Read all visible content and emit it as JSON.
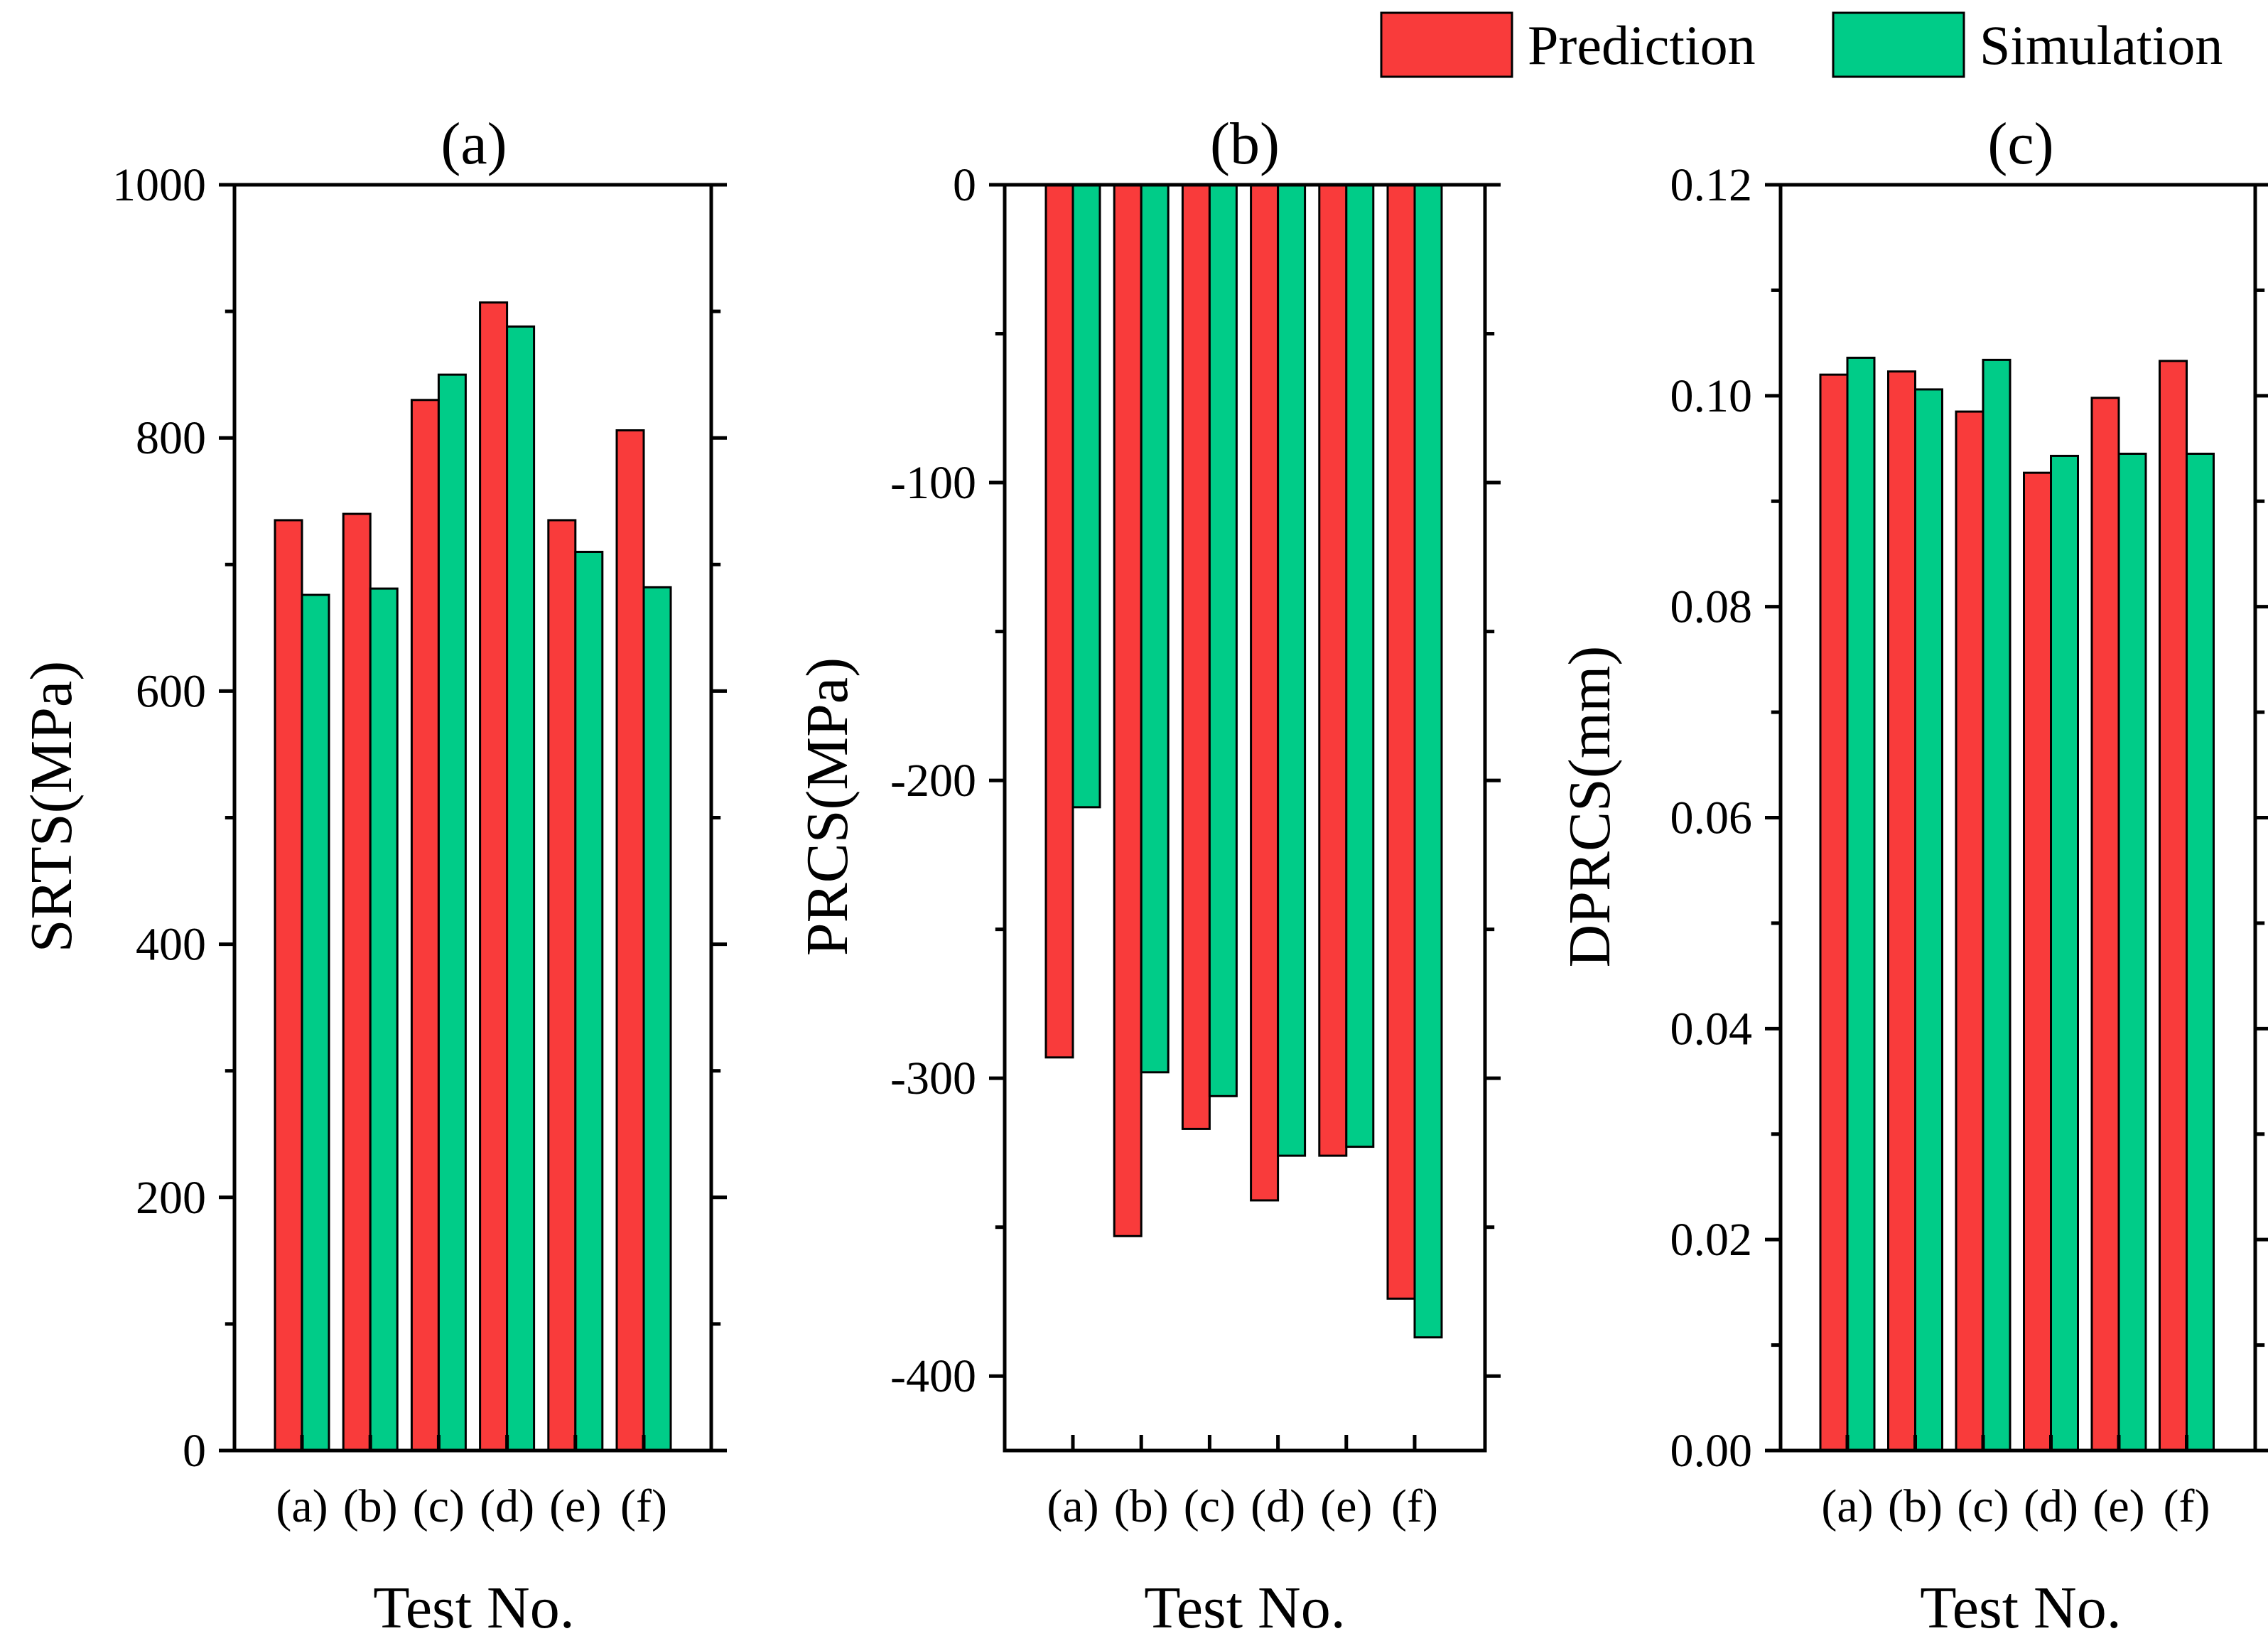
{
  "legend": {
    "items": [
      {
        "label": "Prediction",
        "color": "#f93b3b"
      },
      {
        "label": "Simulation",
        "color": "#00cc88"
      }
    ]
  },
  "chart_data": [
    {
      "type": "bar",
      "title": "(a)",
      "xlabel": "Test No.",
      "ylabel": "SRTS(MPa)",
      "categories": [
        "(a)",
        "(b)",
        "(c)",
        "(d)",
        "(e)",
        "(f)"
      ],
      "ylim": [
        0,
        1000
      ],
      "yticks": [
        0,
        200,
        400,
        600,
        800,
        1000
      ],
      "ytick_labels": [
        "0",
        "200",
        "400",
        "600",
        "800",
        "1000"
      ],
      "series": [
        {
          "name": "Prediction",
          "values": [
            735,
            740,
            830,
            907,
            735,
            806
          ]
        },
        {
          "name": "Simulation",
          "values": [
            676,
            681,
            850,
            888,
            710,
            682
          ]
        }
      ]
    },
    {
      "type": "bar",
      "title": "(b)",
      "xlabel": "Test No.",
      "ylabel": "PRCS(MPa)",
      "categories": [
        "(a)",
        "(b)",
        "(c)",
        "(d)",
        "(e)",
        "(f)"
      ],
      "ylim": [
        -425,
        0
      ],
      "yticks": [
        0,
        -100,
        -200,
        -300,
        -400
      ],
      "ytick_labels": [
        "0",
        "-100",
        "-200",
        "-300",
        "-400"
      ],
      "series": [
        {
          "name": "Prediction",
          "values": [
            -293,
            -353,
            -317,
            -341,
            -326,
            -374
          ]
        },
        {
          "name": "Simulation",
          "values": [
            -209,
            -298,
            -306,
            -326,
            -323,
            -387
          ]
        }
      ]
    },
    {
      "type": "bar",
      "title": "(c)",
      "xlabel": "Test No.",
      "ylabel": "DPRCS(mm)",
      "categories": [
        "(a)",
        "(b)",
        "(c)",
        "(d)",
        "(e)",
        "(f)"
      ],
      "ylim": [
        0,
        0.12
      ],
      "yticks": [
        0,
        0.02,
        0.04,
        0.06,
        0.08,
        0.1,
        0.12
      ],
      "ytick_labels": [
        "0.00",
        "0.02",
        "0.04",
        "0.06",
        "0.08",
        "0.10",
        "0.12"
      ],
      "series": [
        {
          "name": "Prediction",
          "values": [
            0.102,
            0.1023,
            0.0985,
            0.0927,
            0.0998,
            0.1033
          ]
        },
        {
          "name": "Simulation",
          "values": [
            0.1036,
            0.1006,
            0.1034,
            0.0943,
            0.0945,
            0.0945
          ]
        }
      ]
    }
  ]
}
